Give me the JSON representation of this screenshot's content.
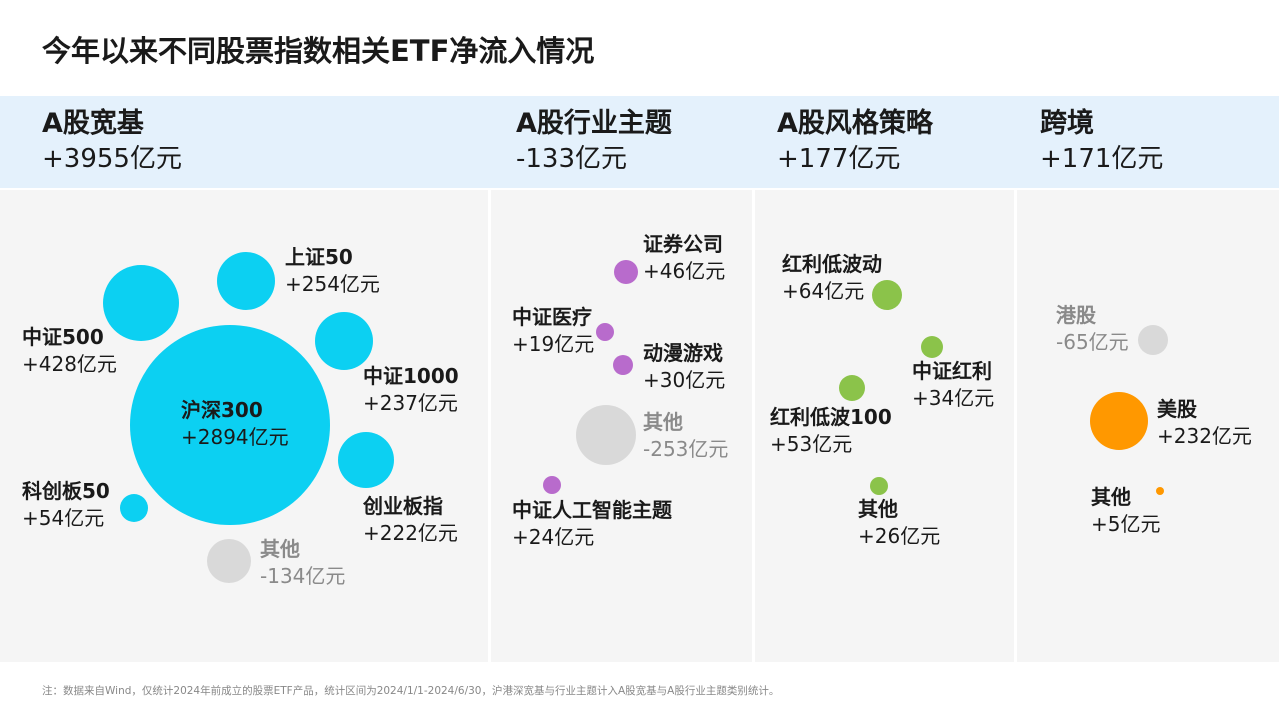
{
  "title": "今年以来不同股票指数相关ETF净流入情况",
  "chart_data": {
    "type": "bubble",
    "title": "今年以来不同股票指数相关ETF净流入情况",
    "unit": "亿元",
    "colors": {
      "A股宽基": "#0cd0f2",
      "A股行业主题": "#b86bcc",
      "A股风格策略": "#8bc34a",
      "跨境": "#ff9800",
      "negative": "#d9d9d9"
    },
    "groups": [
      {
        "name": "A股宽基",
        "total": "+3955亿元",
        "items": [
          {
            "name": "沪深300",
            "value": 2894,
            "label": "+2894亿元"
          },
          {
            "name": "中证500",
            "value": 428,
            "label": "+428亿元"
          },
          {
            "name": "上证50",
            "value": 254,
            "label": "+254亿元"
          },
          {
            "name": "中证1000",
            "value": 237,
            "label": "+237亿元"
          },
          {
            "name": "创业板指",
            "value": 222,
            "label": "+222亿元"
          },
          {
            "name": "科创板50",
            "value": 54,
            "label": "+54亿元"
          },
          {
            "name": "其他",
            "value": -134,
            "label": "-134亿元"
          }
        ]
      },
      {
        "name": "A股行业主题",
        "total": "-133亿元",
        "items": [
          {
            "name": "证券公司",
            "value": 46,
            "label": "+46亿元"
          },
          {
            "name": "中证医疗",
            "value": 19,
            "label": "+19亿元"
          },
          {
            "name": "动漫游戏",
            "value": 30,
            "label": "+30亿元"
          },
          {
            "name": "其他",
            "value": -253,
            "label": "-253亿元"
          },
          {
            "name": "中证人工智能主题",
            "value": 24,
            "label": "+24亿元"
          }
        ]
      },
      {
        "name": "A股风格策略",
        "total": "+177亿元",
        "items": [
          {
            "name": "红利低波动",
            "value": 64,
            "label": "+64亿元"
          },
          {
            "name": "中证红利",
            "value": 34,
            "label": "+34亿元"
          },
          {
            "name": "红利低波100",
            "value": 53,
            "label": "+53亿元"
          },
          {
            "name": "其他",
            "value": 26,
            "label": "+26亿元"
          }
        ]
      },
      {
        "name": "跨境",
        "total": "+171亿元",
        "items": [
          {
            "name": "港股",
            "value": -65,
            "label": "-65亿元"
          },
          {
            "name": "美股",
            "value": 232,
            "label": "+232亿元"
          },
          {
            "name": "其他",
            "value": 5,
            "label": "+5亿元"
          }
        ]
      }
    ]
  },
  "note": "注：数据来自Wind，仅统计2024年前成立的股票ETF产品，统计区间为2024/1/1-2024/6/30，沪港深宽基与行业主题计入A股宽基与A股行业主题类别统计。"
}
